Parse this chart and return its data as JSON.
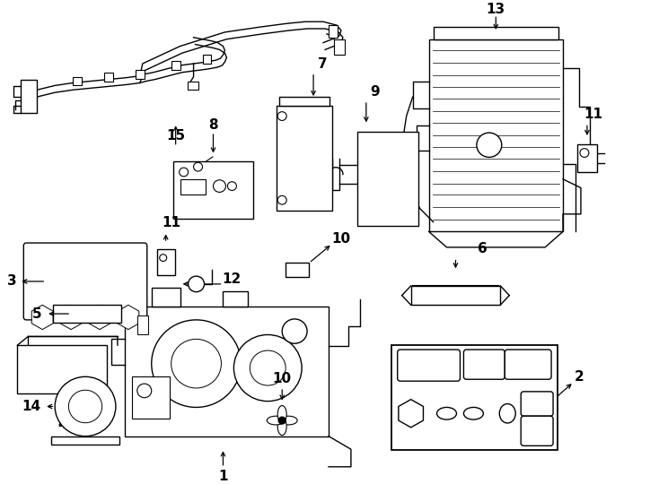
{
  "bg_color": "#ffffff",
  "line_color": "#000000",
  "lw": 1.0
}
